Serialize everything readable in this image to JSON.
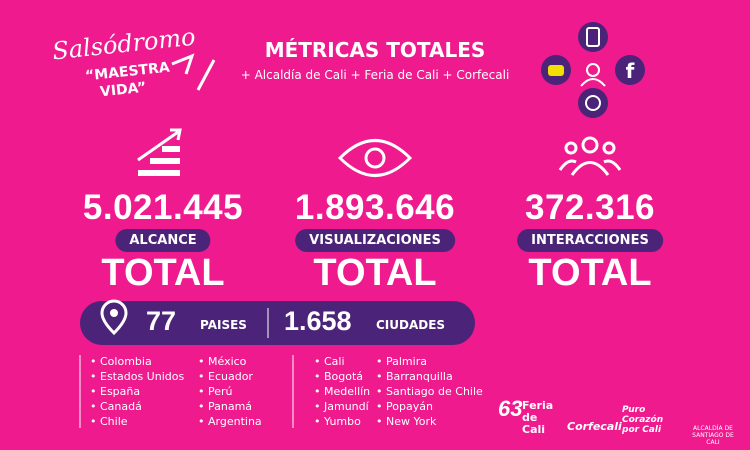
{
  "logo": {
    "line1": "Salsódromo",
    "line2": "“MAESTRA",
    "line3": "VIDA”"
  },
  "header": {
    "title": "MÉTRICAS TOTALES",
    "subtitle": "+ Alcaldía de Cali + Feria de Cali + Corfecali"
  },
  "metrics": [
    {
      "value": "5.021.445",
      "label": "ALCANCE",
      "total": "TOTAL"
    },
    {
      "value": "1.893.646",
      "label": "VISUALIZACIONES",
      "total": "TOTAL"
    },
    {
      "value": "372.316",
      "label": "INTERACCIONES",
      "total": "TOTAL"
    }
  ],
  "locations": {
    "countries_count": "77",
    "countries_label": "PAISES",
    "cities_count": "1.658",
    "cities_label": "CIUDADES",
    "countries": [
      [
        "Colombia",
        "Estados Unidos",
        "España",
        "Canadá",
        "Chile"
      ],
      [
        "México",
        "Ecuador",
        "Perú",
        "Panamá",
        "Argentina"
      ]
    ],
    "cities": [
      [
        "Cali",
        "Bogotá",
        "Medellín",
        "Jamundí",
        "Yumbo"
      ],
      [
        "Palmira",
        "Barranquilla",
        "Santiago de Chile",
        "Popayán",
        "New York"
      ]
    ]
  },
  "footer": {
    "feria": "Feria de Cali",
    "feria_number": "63",
    "corfecali": "Corfecali",
    "puro": "Puro Corazón por Cali",
    "alcaldia": "ALCALDÍA DE SANTIAGO DE CALI"
  }
}
